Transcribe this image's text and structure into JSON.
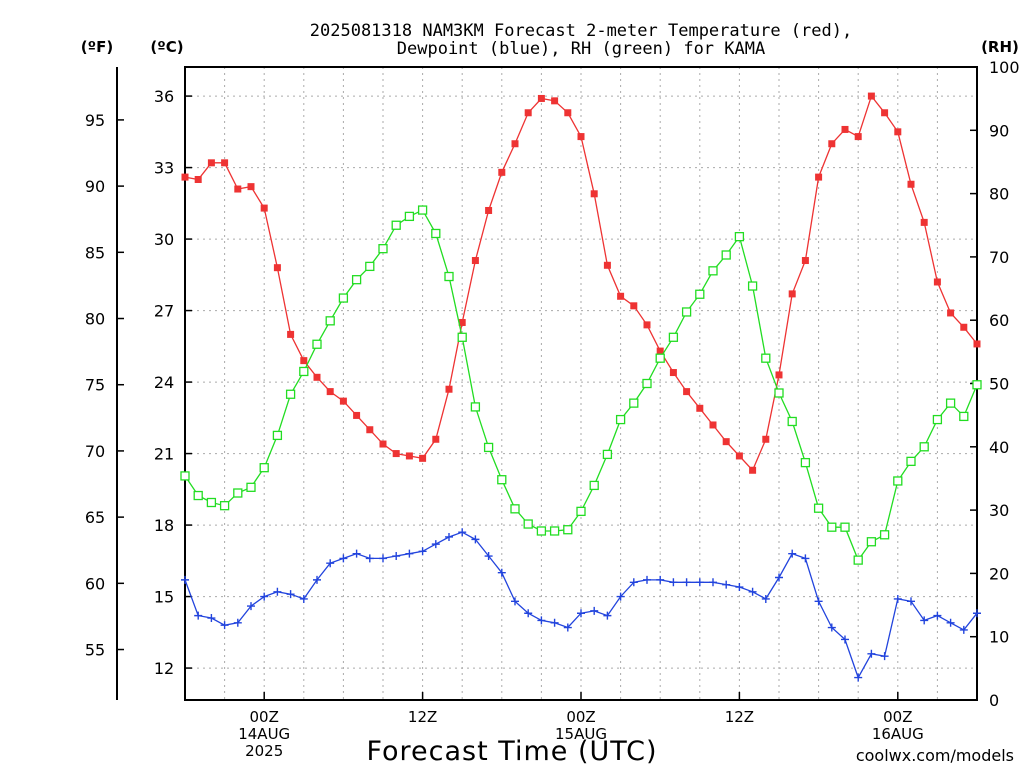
{
  "header": {
    "title_line1": "2025081318 NAM3KM Forecast 2-meter Temperature (red),",
    "title_line2": "Dewpoint (blue), RH (green) for KAMA"
  },
  "axes": {
    "f_unit": "(ºF)",
    "c_unit": "(ºC)",
    "rh_unit": "(RH)",
    "xlabel": "Forecast Time (UTC)",
    "credit": "coolwx.com/models"
  },
  "colors": {
    "temp": "#ee3333",
    "dewpoint": "#2244dd",
    "rh": "#22dd22",
    "credit": "#dd3333",
    "grid": "#aaaaaa"
  },
  "chart_data": {
    "type": "line",
    "x_unit": "forecast hour",
    "xlim": [
      0,
      60
    ],
    "x_ticks": [
      {
        "x": 6,
        "lines": [
          "00Z",
          "14AUG",
          "2025"
        ]
      },
      {
        "x": 18,
        "lines": [
          "12Z"
        ]
      },
      {
        "x": 30,
        "lines": [
          "00Z",
          "15AUG"
        ]
      },
      {
        "x": 42,
        "lines": [
          "12Z"
        ]
      },
      {
        "x": 54,
        "lines": [
          "00Z",
          "16AUG"
        ]
      }
    ],
    "ylim_c": [
      10.66,
      37.22
    ],
    "yticks_c": [
      12,
      15,
      18,
      21,
      24,
      27,
      30,
      33,
      36
    ],
    "yticks_f": [
      55,
      60,
      65,
      70,
      75,
      80,
      85,
      90,
      95
    ],
    "ylim_rh": [
      0,
      100
    ],
    "yticks_rh": [
      0,
      10,
      20,
      30,
      40,
      50,
      60,
      70,
      80,
      90,
      100
    ],
    "grid": true,
    "x": [
      0,
      1,
      2,
      3,
      4,
      5,
      6,
      7,
      8,
      9,
      10,
      11,
      12,
      13,
      14,
      15,
      16,
      17,
      18,
      19,
      20,
      21,
      22,
      23,
      24,
      25,
      26,
      27,
      28,
      29,
      30,
      31,
      32,
      33,
      34,
      35,
      36,
      37,
      38,
      39,
      40,
      41,
      42,
      43,
      44,
      45,
      46,
      47,
      48,
      49,
      50,
      51,
      52,
      53,
      54,
      55,
      56,
      57,
      58,
      59,
      60
    ],
    "series": [
      {
        "name": "Temperature",
        "axis": "C",
        "marker": "filled-square",
        "values": [
          32.6,
          32.5,
          33.2,
          33.2,
          32.1,
          32.2,
          31.3,
          28.8,
          26.0,
          24.9,
          24.2,
          23.6,
          23.2,
          22.6,
          22.0,
          21.4,
          21.0,
          20.9,
          20.8,
          21.6,
          23.7,
          26.5,
          29.1,
          31.2,
          32.8,
          34.0,
          35.3,
          35.9,
          35.8,
          35.3,
          34.3,
          31.9,
          28.9,
          27.6,
          27.2,
          26.4,
          25.3,
          24.4,
          23.6,
          22.9,
          22.2,
          21.5,
          20.9,
          20.3,
          21.6,
          24.3,
          27.7,
          29.1,
          32.6,
          34.0,
          34.6,
          34.3,
          36.0,
          35.3,
          34.5,
          32.3,
          30.7,
          28.2,
          26.9,
          26.3,
          25.6
        ]
      },
      {
        "name": "Dewpoint",
        "axis": "C",
        "marker": "plus",
        "values": [
          15.7,
          14.2,
          14.1,
          13.8,
          13.9,
          14.6,
          15.0,
          15.2,
          15.1,
          14.9,
          15.7,
          16.4,
          16.6,
          16.8,
          16.6,
          16.6,
          16.7,
          16.8,
          16.9,
          17.2,
          17.5,
          17.7,
          17.4,
          16.7,
          16.0,
          14.8,
          14.3,
          14.0,
          13.9,
          13.7,
          14.3,
          14.4,
          14.2,
          15.0,
          15.6,
          15.7,
          15.7,
          15.6,
          15.6,
          15.6,
          15.6,
          15.5,
          15.4,
          15.2,
          14.9,
          15.8,
          16.8,
          16.6,
          14.8,
          13.7,
          13.2,
          11.6,
          12.6,
          12.5,
          14.9,
          14.8,
          14.0,
          14.2,
          13.9,
          13.6,
          14.3
        ]
      },
      {
        "name": "RH",
        "axis": "RH",
        "marker": "open-square",
        "values": [
          35.4,
          32.3,
          31.2,
          30.7,
          32.7,
          33.6,
          36.7,
          41.8,
          48.3,
          51.9,
          56.2,
          59.9,
          63.5,
          66.4,
          68.5,
          71.3,
          75.0,
          76.4,
          77.4,
          73.7,
          66.9,
          57.3,
          46.3,
          39.9,
          34.8,
          30.2,
          27.8,
          26.7,
          26.7,
          26.9,
          29.8,
          33.9,
          38.8,
          44.3,
          46.9,
          50.0,
          54.0,
          57.3,
          61.3,
          64.1,
          67.8,
          70.3,
          73.2,
          65.4,
          54.0,
          48.5,
          44.0,
          37.5,
          30.3,
          27.3,
          27.3,
          22.1,
          25.0,
          26.1,
          34.6,
          37.7,
          40.0,
          44.3,
          46.9,
          44.8,
          49.8
        ]
      }
    ]
  }
}
